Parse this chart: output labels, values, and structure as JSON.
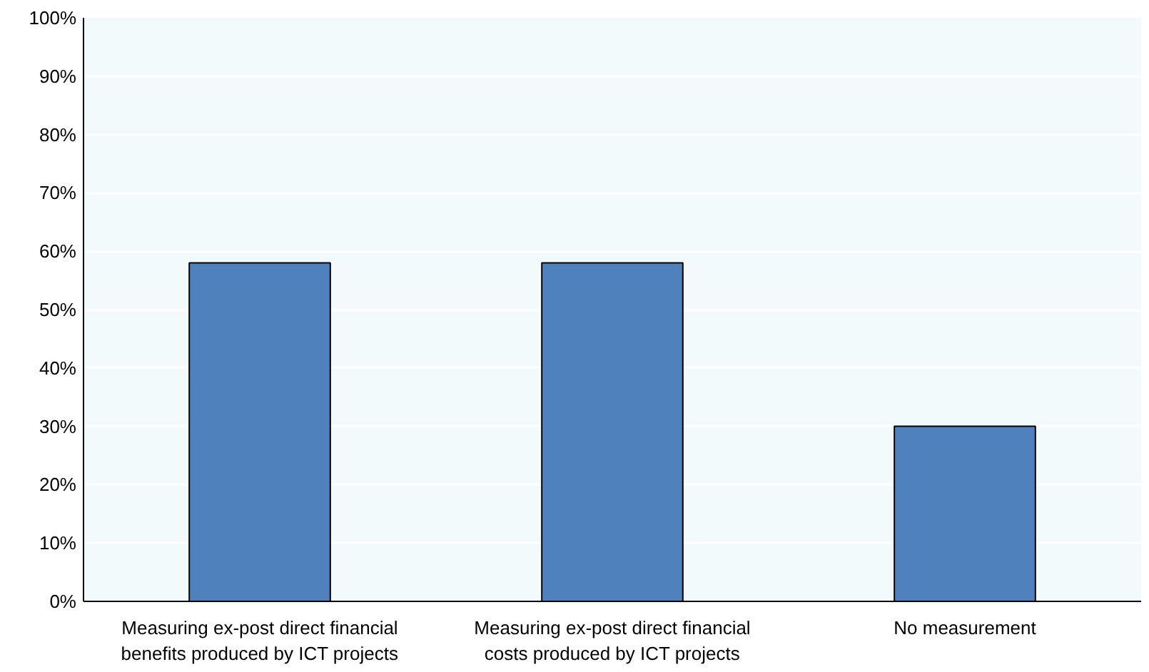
{
  "chart_data": {
    "type": "bar",
    "categories": [
      "Measuring ex-post direct financial benefits produced by ICT projects",
      "Measuring ex-post direct financial costs produced by ICT projects",
      "No measurement"
    ],
    "values": [
      58,
      58,
      30
    ],
    "color": "#4f81bd",
    "ylim": [
      0,
      100
    ],
    "yticks": [
      {
        "value": 0,
        "label": "0%"
      },
      {
        "value": 10,
        "label": "10%"
      },
      {
        "value": 20,
        "label": "20%"
      },
      {
        "value": 30,
        "label": "30%"
      },
      {
        "value": 40,
        "label": "40%"
      },
      {
        "value": 50,
        "label": "50%"
      },
      {
        "value": 60,
        "label": "60%"
      },
      {
        "value": 70,
        "label": "70%"
      },
      {
        "value": 80,
        "label": "80%"
      },
      {
        "value": 90,
        "label": "90%"
      },
      {
        "value": 100,
        "label": "100%"
      }
    ],
    "grid": "y"
  }
}
